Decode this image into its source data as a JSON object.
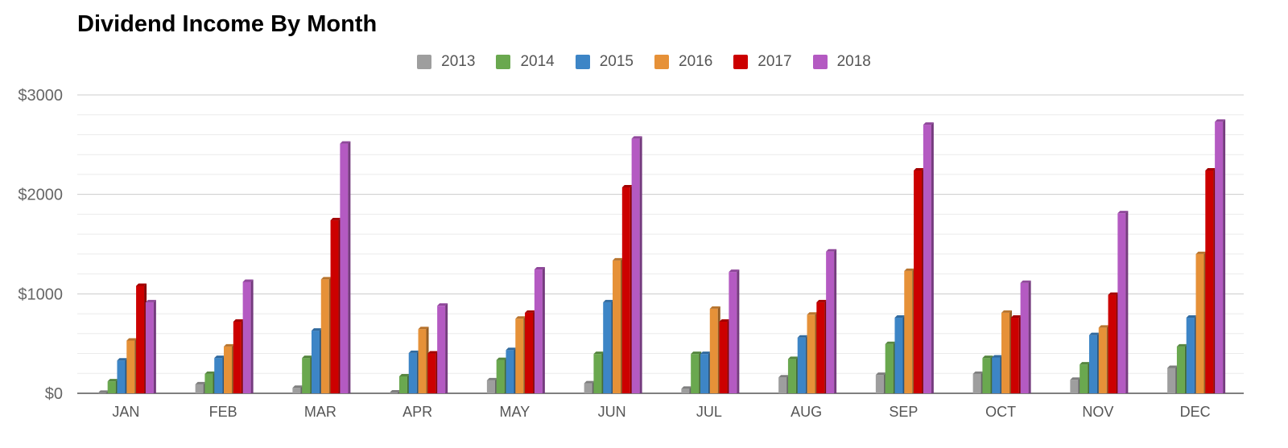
{
  "chart_data": {
    "type": "bar",
    "title": "Dividend Income By Month",
    "xlabel": "",
    "ylabel": "",
    "ylim": [
      0,
      3000
    ],
    "yticks": [
      0,
      1000,
      2000,
      3000
    ],
    "ytick_labels": [
      "$0",
      "$1000",
      "$2000",
      "$3000"
    ],
    "grid": true,
    "legend_position": "top-center",
    "categories": [
      "JAN",
      "FEB",
      "MAR",
      "APR",
      "MAY",
      "JUN",
      "JUL",
      "AUG",
      "SEP",
      "OCT",
      "NOV",
      "DEC"
    ],
    "series": [
      {
        "name": "2013",
        "color": "#9e9e9e",
        "values": [
          5,
          90,
          55,
          8,
          130,
          100,
          45,
          160,
          185,
          195,
          135,
          255
        ]
      },
      {
        "name": "2014",
        "color": "#6aa84f",
        "values": [
          120,
          195,
          355,
          170,
          335,
          395,
          395,
          345,
          495,
          355,
          290,
          470
        ]
      },
      {
        "name": "2015",
        "color": "#3d85c6",
        "values": [
          330,
          355,
          630,
          405,
          435,
          915,
          395,
          560,
          760,
          360,
          585,
          760
        ]
      },
      {
        "name": "2016",
        "color": "#e69138",
        "values": [
          530,
          470,
          1145,
          645,
          750,
          1335,
          850,
          790,
          1230,
          810,
          660,
          1400
        ]
      },
      {
        "name": "2017",
        "color": "#cc0000",
        "values": [
          1080,
          720,
          1740,
          400,
          810,
          2070,
          720,
          915,
          2240,
          760,
          990,
          2240
        ]
      },
      {
        "name": "2018",
        "color": "#b45ac2",
        "values": [
          915,
          1120,
          2510,
          880,
          1245,
          2560,
          1220,
          1425,
          2700,
          1110,
          1810,
          2730
        ]
      }
    ]
  }
}
